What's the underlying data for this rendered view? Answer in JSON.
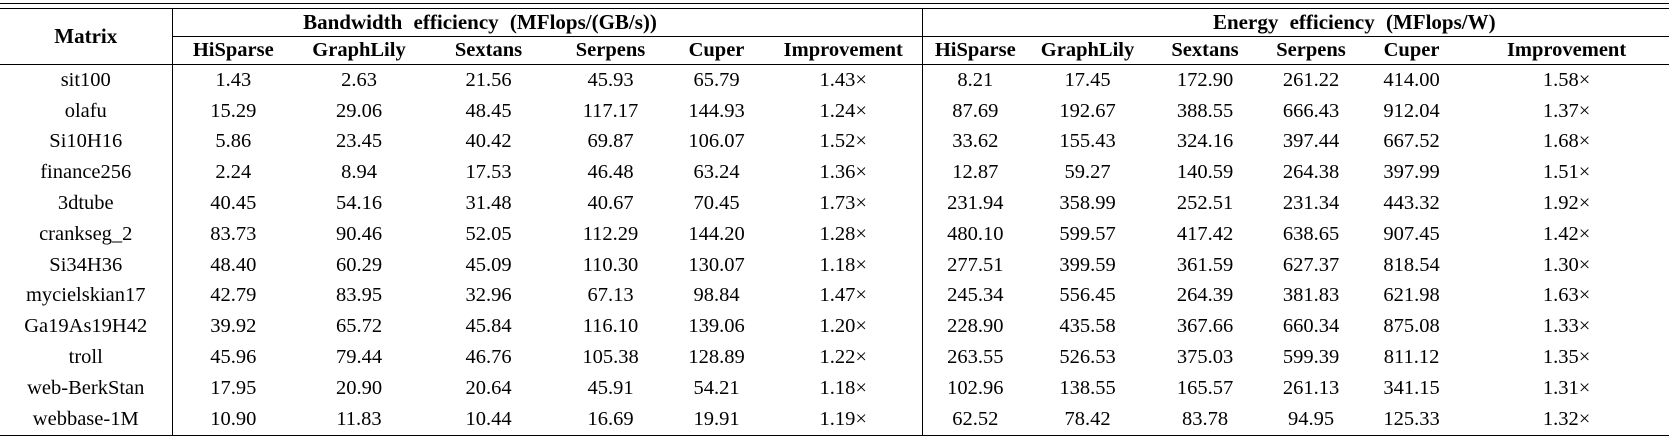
{
  "page": {
    "background_color": "#ffffff",
    "text_color": "#000000",
    "rule_color": "#000000"
  },
  "table": {
    "matrix_header": "Matrix",
    "groups": [
      {
        "title": "Bandwidth efficiency (MFlops/(GB/s))",
        "columns": [
          "HiSparse",
          "GraphLily",
          "Sextans",
          "Serpens",
          "Cuper",
          "Improvement"
        ]
      },
      {
        "title": "Energy efficiency (MFlops/W)",
        "columns": [
          "HiSparse",
          "GraphLily",
          "Sextans",
          "Serpens",
          "Cuper",
          "Improvement"
        ]
      }
    ],
    "rows": [
      {
        "matrix": "sit100",
        "bandwidth": [
          "1.43",
          "2.63",
          "21.56",
          "45.93",
          "65.79",
          "1.43×"
        ],
        "energy": [
          "8.21",
          "17.45",
          "172.90",
          "261.22",
          "414.00",
          "1.58×"
        ]
      },
      {
        "matrix": "olafu",
        "bandwidth": [
          "15.29",
          "29.06",
          "48.45",
          "117.17",
          "144.93",
          "1.24×"
        ],
        "energy": [
          "87.69",
          "192.67",
          "388.55",
          "666.43",
          "912.04",
          "1.37×"
        ]
      },
      {
        "matrix": "Si10H16",
        "bandwidth": [
          "5.86",
          "23.45",
          "40.42",
          "69.87",
          "106.07",
          "1.52×"
        ],
        "energy": [
          "33.62",
          "155.43",
          "324.16",
          "397.44",
          "667.52",
          "1.68×"
        ]
      },
      {
        "matrix": "finance256",
        "bandwidth": [
          "2.24",
          "8.94",
          "17.53",
          "46.48",
          "63.24",
          "1.36×"
        ],
        "energy": [
          "12.87",
          "59.27",
          "140.59",
          "264.38",
          "397.99",
          "1.51×"
        ]
      },
      {
        "matrix": "3dtube",
        "bandwidth": [
          "40.45",
          "54.16",
          "31.48",
          "40.67",
          "70.45",
          "1.73×"
        ],
        "energy": [
          "231.94",
          "358.99",
          "252.51",
          "231.34",
          "443.32",
          "1.92×"
        ]
      },
      {
        "matrix": "crankseg_2",
        "bandwidth": [
          "83.73",
          "90.46",
          "52.05",
          "112.29",
          "144.20",
          "1.28×"
        ],
        "energy": [
          "480.10",
          "599.57",
          "417.42",
          "638.65",
          "907.45",
          "1.42×"
        ]
      },
      {
        "matrix": "Si34H36",
        "bandwidth": [
          "48.40",
          "60.29",
          "45.09",
          "110.30",
          "130.07",
          "1.18×"
        ],
        "energy": [
          "277.51",
          "399.59",
          "361.59",
          "627.37",
          "818.54",
          "1.30×"
        ]
      },
      {
        "matrix": "mycielskian17",
        "bandwidth": [
          "42.79",
          "83.95",
          "32.96",
          "67.13",
          "98.84",
          "1.47×"
        ],
        "energy": [
          "245.34",
          "556.45",
          "264.39",
          "381.83",
          "621.98",
          "1.63×"
        ]
      },
      {
        "matrix": "Ga19As19H42",
        "bandwidth": [
          "39.92",
          "65.72",
          "45.84",
          "116.10",
          "139.06",
          "1.20×"
        ],
        "energy": [
          "228.90",
          "435.58",
          "367.66",
          "660.34",
          "875.08",
          "1.33×"
        ]
      },
      {
        "matrix": "troll",
        "bandwidth": [
          "45.96",
          "79.44",
          "46.76",
          "105.38",
          "128.89",
          "1.22×"
        ],
        "energy": [
          "263.55",
          "526.53",
          "375.03",
          "599.39",
          "811.12",
          "1.35×"
        ]
      },
      {
        "matrix": "web-BerkStan",
        "bandwidth": [
          "17.95",
          "20.90",
          "20.64",
          "45.91",
          "54.21",
          "1.18×"
        ],
        "energy": [
          "102.96",
          "138.55",
          "165.57",
          "261.13",
          "341.15",
          "1.31×"
        ]
      },
      {
        "matrix": "webbase-1M",
        "bandwidth": [
          "10.90",
          "11.83",
          "10.44",
          "16.69",
          "19.91",
          "1.19×"
        ],
        "energy": [
          "62.52",
          "78.42",
          "83.78",
          "94.95",
          "125.33",
          "1.32×"
        ]
      }
    ]
  }
}
